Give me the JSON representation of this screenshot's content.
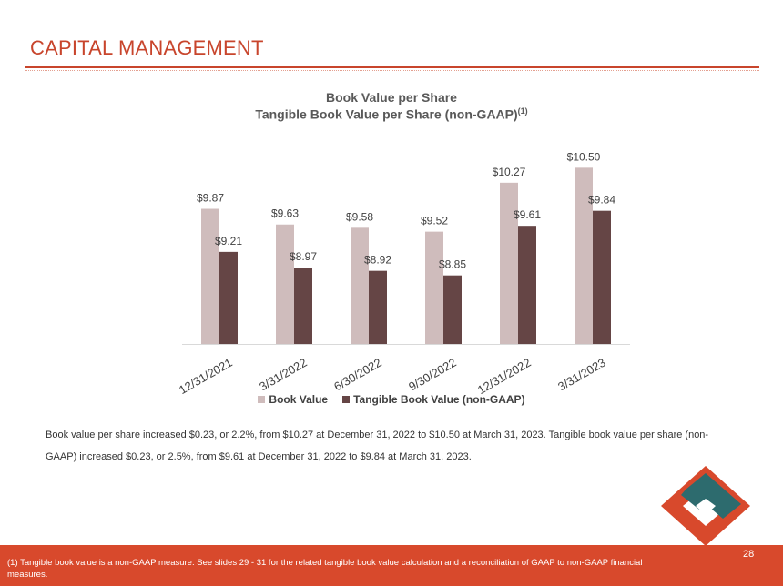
{
  "header": {
    "title": "CAPITAL MANAGEMENT"
  },
  "colors": {
    "accent": "#c8452c",
    "book_value": "#cfbcbc",
    "tangible_book_value": "#654545",
    "footer": "#d8492c"
  },
  "chart_data": {
    "type": "bar",
    "title": "Book Value per Share",
    "subtitle": "Tangible Book Value per Share (non-GAAP)",
    "subtitle_superscript": "(1)",
    "categories": [
      "12/31/2021",
      "3/31/2022",
      "6/30/2022",
      "9/30/2022",
      "12/31/2022",
      "3/31/2023"
    ],
    "series": [
      {
        "name": "Book Value",
        "values": [
          9.87,
          9.63,
          9.58,
          9.52,
          10.27,
          10.5
        ],
        "labels": [
          "$9.87",
          "$9.63",
          "$9.58",
          "$9.52",
          "$10.27",
          "$10.50"
        ]
      },
      {
        "name": "Tangible Book Value (non-GAAP)",
        "values": [
          9.21,
          8.97,
          8.92,
          8.85,
          9.61,
          9.84
        ],
        "labels": [
          "$9.21",
          "$8.97",
          "$8.92",
          "$8.85",
          "$9.61",
          "$9.84"
        ]
      }
    ],
    "ylim": [
      7.8,
      10.7
    ],
    "legend": "bottom",
    "grid": false
  },
  "narrative": "Book value per share increased $0.23, or 2.2%, from $10.27 at December 31, 2022 to $10.50 at March 31, 2023. Tangible book value per share (non-GAAP) increased $0.23, or 2.5%, from $9.61 at December 31, 2022 to $9.84 at March 31, 2023.",
  "footer": {
    "footnote": "(1) Tangible book value is a non-GAAP measure.  See slides 29 - 31 for the related tangible book value calculation and a reconciliation of GAAP to non-GAAP financial measures.",
    "page_number": "28"
  }
}
